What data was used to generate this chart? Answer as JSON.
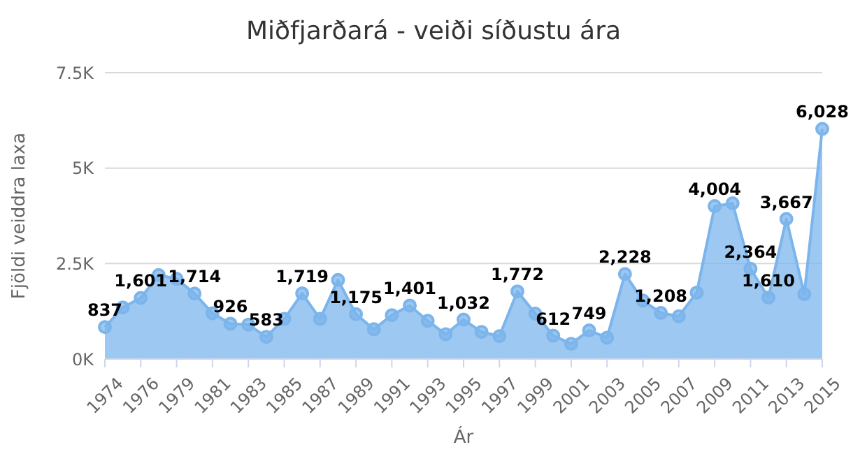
{
  "chart_data": {
    "type": "area",
    "title": "Miðfjarðará - veiði síðustu ára",
    "xlabel": "Ár",
    "ylabel": "Fjöldi veiddra laxa",
    "categories": [
      "1974",
      null,
      "1976",
      null,
      "1979",
      null,
      "1981",
      null,
      "1983",
      null,
      "1985",
      null,
      "1987",
      null,
      "1989",
      null,
      "1991",
      null,
      "1993",
      null,
      "1995",
      null,
      "1997",
      null,
      "1999",
      null,
      "2001",
      null,
      "2003",
      null,
      "2005",
      null,
      "2007",
      null,
      "2009",
      null,
      "2011",
      null,
      "2013",
      null,
      "2015"
    ],
    "values": [
      837,
      1350,
      1601,
      2200,
      2100,
      1714,
      1200,
      926,
      900,
      583,
      1050,
      1719,
      1050,
      2070,
      1175,
      780,
      1150,
      1401,
      1000,
      650,
      1032,
      710,
      600,
      1772,
      1190,
      612,
      400,
      749,
      560,
      2228,
      1530,
      1208,
      1120,
      1740,
      4004,
      4080,
      2364,
      1610,
      3667,
      1700,
      6028
    ],
    "value_labels": [
      "837",
      null,
      "1,601",
      null,
      null,
      "1,714",
      null,
      "926",
      null,
      "583",
      null,
      "1,719",
      null,
      null,
      "1,175",
      null,
      null,
      "1,401",
      null,
      null,
      "1,032",
      null,
      null,
      "1,772",
      null,
      "612",
      null,
      "749",
      null,
      "2,228",
      null,
      "1,208",
      null,
      null,
      "4,004",
      null,
      "2,364",
      "1,610",
      "3,667",
      null,
      "6,028"
    ],
    "color": "#7cb5ec",
    "ylim": [
      0,
      7500
    ],
    "yticks": [
      {
        "value": 0,
        "label": "0K"
      },
      {
        "value": 2500,
        "label": "2.5K"
      },
      {
        "value": 5000,
        "label": "5K"
      },
      {
        "value": 7500,
        "label": "7.5K"
      }
    ],
    "grid": "y",
    "marker": "circle",
    "legend": false
  }
}
